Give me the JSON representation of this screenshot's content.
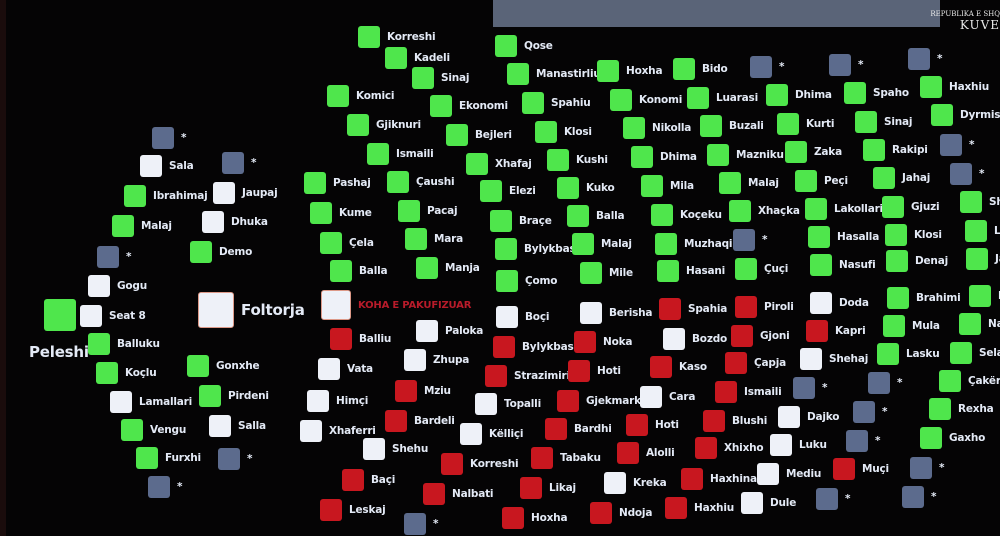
{
  "colors": {
    "yes": "#4fe64c",
    "no": "#c8171f",
    "abstain": "#eef1f8",
    "absent": "#5c6b8d",
    "time_text": "#b81b2a"
  },
  "logo": {
    "line1": "REPUBLIKA E SHQ",
    "line2": "KUVE"
  },
  "speaker": {
    "name": "Peleshi",
    "vote": "yes"
  },
  "podium": {
    "name": "Foltorja",
    "vote": "abstain"
  },
  "time_status": {
    "label": "KOHA E PAKUFIZUAR",
    "vote": "abstain"
  },
  "members": [
    {
      "name": "*",
      "vote": "absent"
    },
    {
      "name": "Sala",
      "vote": "abstain"
    },
    {
      "name": "Ibrahimaj",
      "vote": "yes"
    },
    {
      "name": "Malaj",
      "vote": "yes"
    },
    {
      "name": "*",
      "vote": "absent"
    },
    {
      "name": "Gogu",
      "vote": "abstain"
    },
    {
      "name": "Seat 8",
      "vote": "abstain"
    },
    {
      "name": "Balluku",
      "vote": "yes"
    },
    {
      "name": "Koçlu",
      "vote": "yes"
    },
    {
      "name": "Lamallari",
      "vote": "abstain"
    },
    {
      "name": "Vengu",
      "vote": "yes"
    },
    {
      "name": "Furxhi",
      "vote": "yes"
    },
    {
      "name": "*",
      "vote": "absent"
    },
    {
      "name": "*",
      "vote": "absent"
    },
    {
      "name": "Jaupaj",
      "vote": "abstain"
    },
    {
      "name": "Dhuka",
      "vote": "abstain"
    },
    {
      "name": "Demo",
      "vote": "yes"
    },
    {
      "name": "Gonxhe",
      "vote": "yes"
    },
    {
      "name": "Pirdeni",
      "vote": "yes"
    },
    {
      "name": "Salla",
      "vote": "abstain"
    },
    {
      "name": "*",
      "vote": "absent"
    },
    {
      "name": "Korreshi",
      "vote": "yes"
    },
    {
      "name": "Kadeli",
      "vote": "yes"
    },
    {
      "name": "Sinaj",
      "vote": "yes"
    },
    {
      "name": "Komici",
      "vote": "yes"
    },
    {
      "name": "Gjiknuri",
      "vote": "yes"
    },
    {
      "name": "Ismaili",
      "vote": "yes"
    },
    {
      "name": "Pashaj",
      "vote": "yes"
    },
    {
      "name": "Kume",
      "vote": "yes"
    },
    {
      "name": "Çela",
      "vote": "yes"
    },
    {
      "name": "Balla",
      "vote": "yes"
    },
    {
      "name": "Balliu",
      "vote": "no"
    },
    {
      "name": "Vata",
      "vote": "abstain"
    },
    {
      "name": "Himçi",
      "vote": "abstain"
    },
    {
      "name": "Xhaferri",
      "vote": "abstain"
    },
    {
      "name": "Shehu",
      "vote": "abstain"
    },
    {
      "name": "Baçi",
      "vote": "no"
    },
    {
      "name": "Leskaj",
      "vote": "no"
    },
    {
      "name": "Ekonomi",
      "vote": "yes"
    },
    {
      "name": "Bejleri",
      "vote": "yes"
    },
    {
      "name": "Xhafaj",
      "vote": "yes"
    },
    {
      "name": "Çaushi",
      "vote": "yes"
    },
    {
      "name": "Pacaj",
      "vote": "yes"
    },
    {
      "name": "Mara",
      "vote": "yes"
    },
    {
      "name": "Manja",
      "vote": "yes"
    },
    {
      "name": "Paloka",
      "vote": "abstain"
    },
    {
      "name": "Zhupa",
      "vote": "abstain"
    },
    {
      "name": "Mziu",
      "vote": "no"
    },
    {
      "name": "Bardeli",
      "vote": "no"
    },
    {
      "name": "Korreshi",
      "vote": "no"
    },
    {
      "name": "Nalbati",
      "vote": "no"
    },
    {
      "name": "*",
      "vote": "absent"
    },
    {
      "name": "Qose",
      "vote": "yes"
    },
    {
      "name": "Manastirliu",
      "vote": "yes"
    },
    {
      "name": "Spahiu",
      "vote": "yes"
    },
    {
      "name": "Klosi",
      "vote": "yes"
    },
    {
      "name": "Kushi",
      "vote": "yes"
    },
    {
      "name": "Elezi",
      "vote": "yes"
    },
    {
      "name": "Braçe",
      "vote": "yes"
    },
    {
      "name": "Bylykbashi",
      "vote": "yes"
    },
    {
      "name": "Çomo",
      "vote": "yes"
    },
    {
      "name": "Boçi",
      "vote": "abstain"
    },
    {
      "name": "Bylykbashi",
      "vote": "no"
    },
    {
      "name": "Strazimiri",
      "vote": "no"
    },
    {
      "name": "Topalli",
      "vote": "abstain"
    },
    {
      "name": "Këlliçi",
      "vote": "abstain"
    },
    {
      "name": "Tabaku",
      "vote": "no"
    },
    {
      "name": "Bardhi",
      "vote": "no"
    },
    {
      "name": "Gjekmarkaj",
      "vote": "no"
    },
    {
      "name": "Hoti",
      "vote": "no"
    },
    {
      "name": "Noka",
      "vote": "no"
    },
    {
      "name": "Berisha",
      "vote": "abstain"
    },
    {
      "name": "Likaj",
      "vote": "no"
    },
    {
      "name": "Hoxha",
      "vote": "no"
    },
    {
      "name": "Mile",
      "vote": "yes"
    },
    {
      "name": "Malaj",
      "vote": "yes"
    },
    {
      "name": "Balla",
      "vote": "yes"
    },
    {
      "name": "Kuko",
      "vote": "yes"
    },
    {
      "name": "Hoxha",
      "vote": "yes"
    },
    {
      "name": "Konomi",
      "vote": "yes"
    },
    {
      "name": "Nikolla",
      "vote": "yes"
    },
    {
      "name": "Dhima",
      "vote": "yes"
    },
    {
      "name": "Mila",
      "vote": "yes"
    },
    {
      "name": "Koçeku",
      "vote": "yes"
    },
    {
      "name": "Muzhaqi",
      "vote": "yes"
    },
    {
      "name": "Hasani",
      "vote": "yes"
    },
    {
      "name": "Spahia",
      "vote": "no"
    },
    {
      "name": "Bozdo",
      "vote": "abstain"
    },
    {
      "name": "Kaso",
      "vote": "no"
    },
    {
      "name": "Cara",
      "vote": "abstain"
    },
    {
      "name": "Hoti",
      "vote": "no"
    },
    {
      "name": "Alolli",
      "vote": "no"
    },
    {
      "name": "Kreka",
      "vote": "abstain"
    },
    {
      "name": "Ndoja",
      "vote": "no"
    },
    {
      "name": "Bido",
      "vote": "yes"
    },
    {
      "name": "Luarasi",
      "vote": "yes"
    },
    {
      "name": "Buzali",
      "vote": "yes"
    },
    {
      "name": "Mazniku",
      "vote": "yes"
    },
    {
      "name": "Malaj",
      "vote": "yes"
    },
    {
      "name": "Xhaçka",
      "vote": "yes"
    },
    {
      "name": "*",
      "vote": "absent"
    },
    {
      "name": "Çuçi",
      "vote": "yes"
    },
    {
      "name": "Piroli",
      "vote": "no"
    },
    {
      "name": "Gjoni",
      "vote": "no"
    },
    {
      "name": "Çapja",
      "vote": "no"
    },
    {
      "name": "Ismaili",
      "vote": "no"
    },
    {
      "name": "Blushi",
      "vote": "no"
    },
    {
      "name": "Xhixho",
      "vote": "no"
    },
    {
      "name": "Haxhinasto",
      "vote": "no"
    },
    {
      "name": "Haxhiu",
      "vote": "no"
    },
    {
      "name": "*",
      "vote": "absent"
    },
    {
      "name": "Dhima",
      "vote": "yes"
    },
    {
      "name": "Kurti",
      "vote": "yes"
    },
    {
      "name": "Zaka",
      "vote": "yes"
    },
    {
      "name": "Peçi",
      "vote": "yes"
    },
    {
      "name": "Lakollari",
      "vote": "yes"
    },
    {
      "name": "Hasalla",
      "vote": "yes"
    },
    {
      "name": "Nasufi",
      "vote": "yes"
    },
    {
      "name": "Doda",
      "vote": "abstain"
    },
    {
      "name": "Kapri",
      "vote": "no"
    },
    {
      "name": "Shehaj",
      "vote": "abstain"
    },
    {
      "name": "*",
      "vote": "absent"
    },
    {
      "name": "Dajko",
      "vote": "abstain"
    },
    {
      "name": "Luku",
      "vote": "abstain"
    },
    {
      "name": "Mediu",
      "vote": "abstain"
    },
    {
      "name": "Dule",
      "vote": "abstain"
    },
    {
      "name": "*",
      "vote": "absent"
    },
    {
      "name": "Spaho",
      "vote": "yes"
    },
    {
      "name": "Sinaj",
      "vote": "yes"
    },
    {
      "name": "Rakipi",
      "vote": "yes"
    },
    {
      "name": "Jahaj",
      "vote": "yes"
    },
    {
      "name": "Gjuzi",
      "vote": "yes"
    },
    {
      "name": "Klosi",
      "vote": "yes"
    },
    {
      "name": "Denaj",
      "vote": "yes"
    },
    {
      "name": "Brahimi",
      "vote": "yes"
    },
    {
      "name": "Mula",
      "vote": "yes"
    },
    {
      "name": "Lasku",
      "vote": "yes"
    },
    {
      "name": "*",
      "vote": "absent"
    },
    {
      "name": "*",
      "vote": "absent"
    },
    {
      "name": "*",
      "vote": "absent"
    },
    {
      "name": "Muçi",
      "vote": "no"
    },
    {
      "name": "*",
      "vote": "absent"
    },
    {
      "name": "*",
      "vote": "absent"
    },
    {
      "name": "Haxhiu",
      "vote": "yes"
    },
    {
      "name": "Dyrmishi",
      "vote": "yes"
    },
    {
      "name": "*",
      "vote": "absent"
    },
    {
      "name": "*",
      "vote": "absent"
    },
    {
      "name": "Shal",
      "vote": "yes"
    },
    {
      "name": "Lla",
      "vote": "yes"
    },
    {
      "name": "Jah",
      "vote": "yes"
    },
    {
      "name": "Bu",
      "vote": "yes"
    },
    {
      "name": "Nak",
      "vote": "yes"
    },
    {
      "name": "Selami",
      "vote": "yes"
    },
    {
      "name": "Çakërri",
      "vote": "yes"
    },
    {
      "name": "Rexha",
      "vote": "yes"
    },
    {
      "name": "Gaxho",
      "vote": "yes"
    },
    {
      "name": "*",
      "vote": "absent"
    },
    {
      "name": "*",
      "vote": "absent"
    }
  ]
}
